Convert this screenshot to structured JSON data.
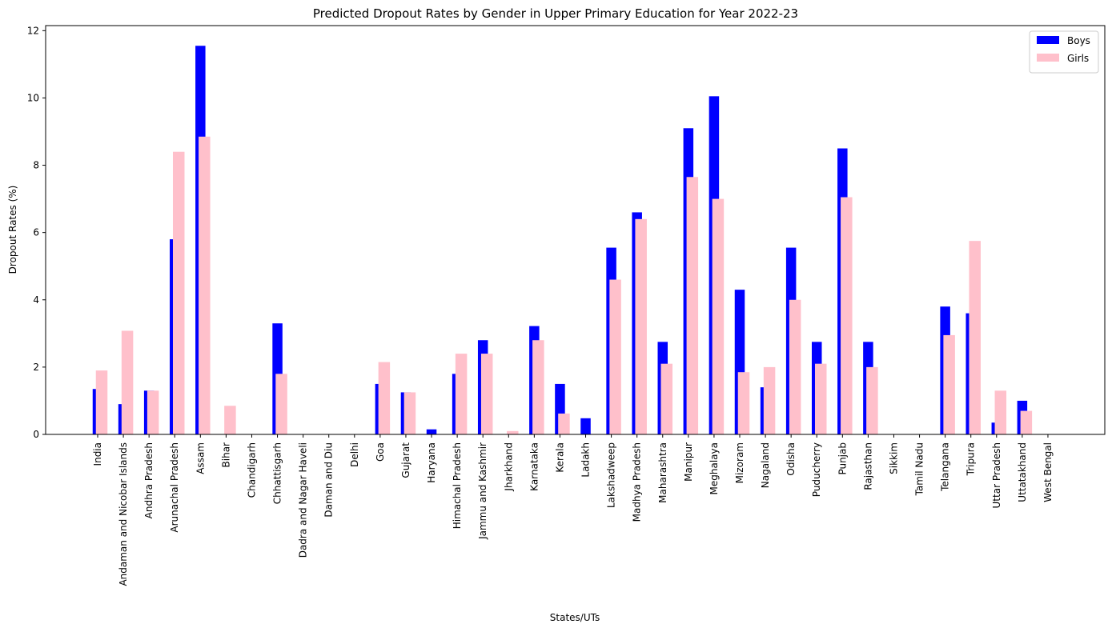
{
  "chart_data": {
    "type": "bar",
    "title": "Predicted Dropout Rates by Gender in Upper Primary Education for Year 2022-23",
    "xlabel": "States/UTs",
    "ylabel": "Dropout Rates (%)",
    "ylim": [
      0,
      12.15
    ],
    "yticks": [
      0,
      2,
      4,
      6,
      8,
      10,
      12
    ],
    "legend_position": "top-right",
    "grid": false,
    "categories": [
      "India",
      "Andaman and Nicobar Islands",
      "Andhra Pradesh",
      "Arunachal Pradesh",
      "Assam",
      "Bihar",
      "Chandigarh",
      "Chhattisgarh",
      "Dadra and Nagar Haveli",
      "Daman and Diu",
      "Delhi",
      "Goa",
      "Gujarat",
      "Haryana",
      "Himachal Pradesh",
      "Jammu and Kashmir",
      "Jharkhand",
      "Karnataka",
      "Kerala",
      "Ladakh",
      "Lakshadweep",
      "Madhya Pradesh",
      "Maharashtra",
      "Manipur",
      "Meghalaya",
      "Mizoram",
      "Nagaland",
      "Odisha",
      "Puducherry",
      "Punjab",
      "Rajasthan",
      "Sikkim",
      "Tamil Nadu",
      "Telangana",
      "Tripura",
      "Uttar Pradesh",
      "Uttatakhand",
      "West Bengal"
    ],
    "series": [
      {
        "name": "Boys",
        "color": "#0000ff",
        "values": [
          1.35,
          0.9,
          1.3,
          5.8,
          11.55,
          0,
          0,
          3.3,
          0,
          0,
          0,
          1.5,
          1.25,
          0.15,
          1.8,
          2.8,
          0,
          3.22,
          1.5,
          0.48,
          5.55,
          6.6,
          2.75,
          9.1,
          10.05,
          4.3,
          1.4,
          5.55,
          2.75,
          8.5,
          2.75,
          0,
          0,
          3.8,
          3.6,
          0.35,
          1.0,
          0
        ]
      },
      {
        "name": "Girls",
        "color": "#ffc0cb",
        "values": [
          1.9,
          3.08,
          1.3,
          8.4,
          8.85,
          0.85,
          0,
          1.8,
          0,
          0,
          0,
          2.15,
          1.25,
          0,
          2.4,
          2.4,
          0.1,
          2.8,
          0.62,
          0,
          4.6,
          6.4,
          2.1,
          7.65,
          7.0,
          1.85,
          2.0,
          4.0,
          2.1,
          7.05,
          2.0,
          0,
          0,
          2.95,
          5.75,
          1.3,
          0.7,
          0
        ]
      }
    ]
  }
}
